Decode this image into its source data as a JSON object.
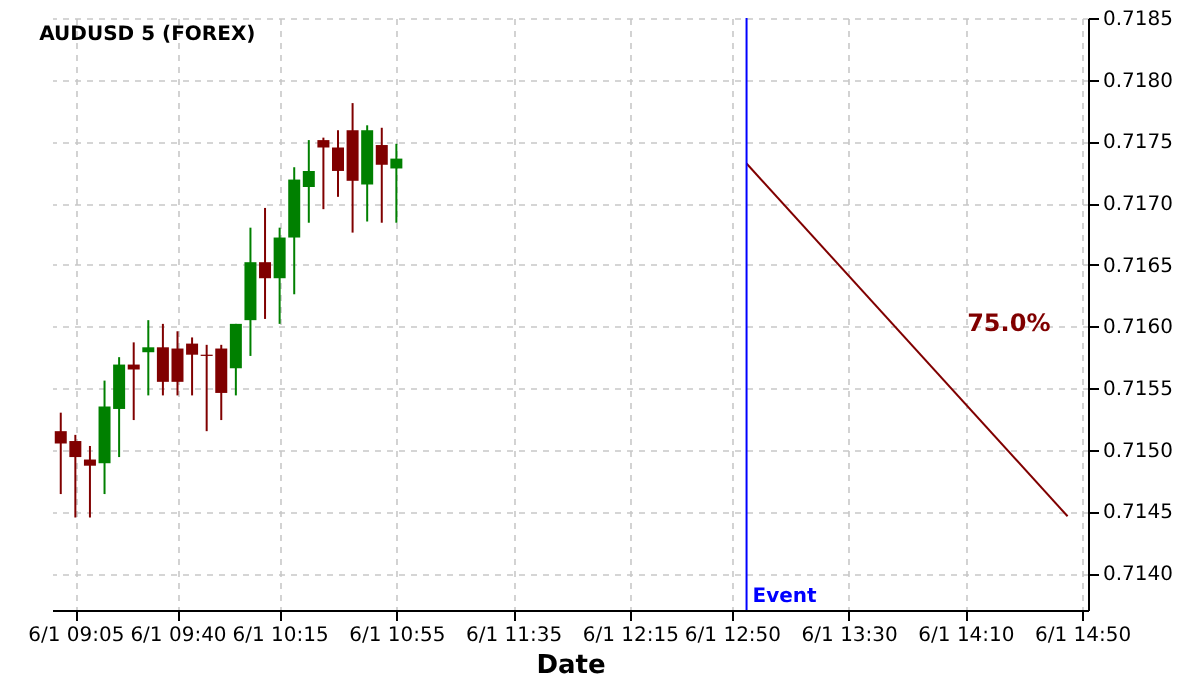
{
  "chart_data": {
    "type": "candlestick",
    "title": "AUDUSD 5 (FOREX)",
    "xlabel": "Date",
    "x": [
      "--06-01T09:00",
      "--06-01T09:05",
      "--06-01T09:10",
      "--06-01T09:15",
      "--06-01T09:20",
      "--06-01T09:25",
      "--06-01T09:30",
      "--06-01T09:35",
      "--06-01T09:40",
      "--06-01T09:45",
      "--06-01T09:50",
      "--06-01T09:55",
      "--06-01T10:00",
      "--06-01T10:05",
      "--06-01T10:10",
      "--06-01T10:15",
      "--06-01T10:20",
      "--06-01T10:25",
      "--06-01T10:30",
      "--06-01T10:35",
      "--06-01T10:40",
      "--06-01T10:45",
      "--06-01T10:50",
      "--06-01T10:55"
    ],
    "ohlc": [
      [
        0.71515,
        0.7153,
        0.71464,
        0.71505
      ],
      [
        0.71507,
        0.71512,
        0.71445,
        0.71494
      ],
      [
        0.71492,
        0.71503,
        0.71445,
        0.71487
      ],
      [
        0.71489,
        0.71556,
        0.71464,
        0.71535
      ],
      [
        0.71533,
        0.71575,
        0.71494,
        0.71569
      ],
      [
        0.71569,
        0.71587,
        0.71524,
        0.71565
      ],
      [
        0.71579,
        0.71605,
        0.71544,
        0.71583
      ],
      [
        0.71583,
        0.71602,
        0.71544,
        0.71555
      ],
      [
        0.71582,
        0.71596,
        0.71544,
        0.71555
      ],
      [
        0.71586,
        0.71591,
        0.71544,
        0.71577
      ],
      [
        0.71577,
        0.71585,
        0.71515,
        0.71576
      ],
      [
        0.71582,
        0.71585,
        0.71524,
        0.71546
      ],
      [
        0.71566,
        0.71602,
        0.71544,
        0.71602
      ],
      [
        0.71605,
        0.7168,
        0.71576,
        0.71652
      ],
      [
        0.71652,
        0.71696,
        0.71606,
        0.71639
      ],
      [
        0.71639,
        0.7168,
        0.71602,
        0.71672
      ],
      [
        0.71672,
        0.71729,
        0.71626,
        0.71719
      ],
      [
        0.71713,
        0.71751,
        0.71684,
        0.71726
      ],
      [
        0.71751,
        0.71753,
        0.71695,
        0.71745
      ],
      [
        0.71745,
        0.71759,
        0.71705,
        0.71726
      ],
      [
        0.71759,
        0.71781,
        0.71676,
        0.71718
      ],
      [
        0.71715,
        0.71763,
        0.71685,
        0.71759
      ],
      [
        0.71747,
        0.71761,
        0.71684,
        0.71731
      ],
      [
        0.71728,
        0.71748,
        0.71684,
        0.71736
      ]
    ],
    "colors": [
      "#800000",
      "#800000",
      "#800000",
      "#008000",
      "#008000",
      "#800000",
      "#008000",
      "#800000",
      "#800000",
      "#800000",
      "#800000",
      "#800000",
      "#008000",
      "#008000",
      "#800000",
      "#008000",
      "#008000",
      "#008000",
      "#800000",
      "#800000",
      "#800000",
      "#008000",
      "#800000",
      "#008000"
    ],
    "series": [
      {
        "type": "line",
        "color": "#800000",
        "x": [
          "--06-01T12:55",
          "--06-01T14:45"
        ],
        "values": [
          0.71732,
          0.71446
        ]
      }
    ],
    "ref_lines": [
      {
        "axis": "x",
        "value": "--06-01T12:55",
        "label": "Event",
        "color": "#0000ff"
      }
    ],
    "annotations": [
      "75.0%"
    ],
    "xlim": [
      "--06-01T08:57",
      "--06-01T14:52"
    ],
    "ylim": [
      0.7137,
      0.7185
    ],
    "xticks": [
      {
        "value": "--06-01T09:05",
        "label": "6/1 09:05"
      },
      {
        "value": "--06-01T09:40",
        "label": "6/1 09:40"
      },
      {
        "value": "--06-01T10:15",
        "label": "6/1 10:15"
      },
      {
        "value": "--06-01T10:55",
        "label": "6/1 10:55"
      },
      {
        "value": "--06-01T11:35",
        "label": "6/1 11:35"
      },
      {
        "value": "--06-01T12:15",
        "label": "6/1 12:15"
      },
      {
        "value": "--06-01T12:50",
        "label": "6/1 12:50"
      },
      {
        "value": "--06-01T13:30",
        "label": "6/1 13:30"
      },
      {
        "value": "--06-01T14:10",
        "label": "6/1 14:10"
      },
      {
        "value": "--06-01T14:50",
        "label": "6/1 14:50"
      }
    ],
    "yticks": [
      {
        "value": 0.714,
        "label": "0.7140"
      },
      0.7145,
      {
        "value": 0.715,
        "label": "0.7150"
      },
      0.7155,
      {
        "value": 0.716,
        "label": "0.7160"
      },
      0.7165,
      {
        "value": 0.717,
        "label": "0.7170"
      },
      0.7175,
      {
        "value": 0.718,
        "label": "0.7180"
      },
      0.7185
    ],
    "grid": true
  }
}
